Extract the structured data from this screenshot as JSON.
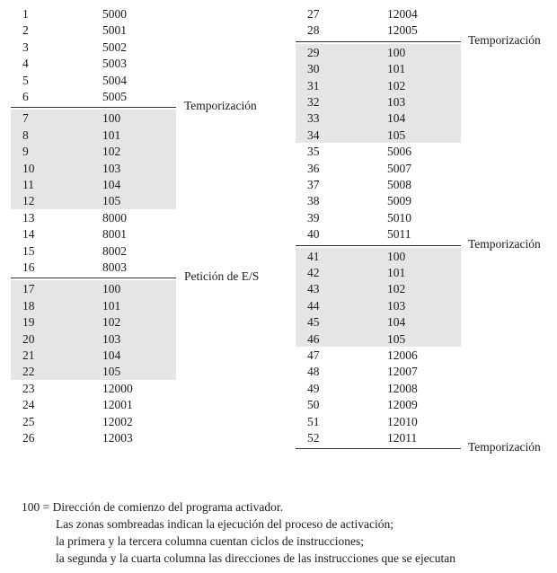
{
  "left_column": {
    "rows": [
      [
        "1",
        "5000"
      ],
      [
        "2",
        "5001"
      ],
      [
        "3",
        "5002"
      ],
      [
        "4",
        "5003"
      ],
      [
        "5",
        "5004"
      ],
      [
        "6",
        "5005"
      ],
      [
        "7",
        "100"
      ],
      [
        "8",
        "101"
      ],
      [
        "9",
        "102"
      ],
      [
        "10",
        "103"
      ],
      [
        "11",
        "104"
      ],
      [
        "12",
        "105"
      ],
      [
        "13",
        "8000"
      ],
      [
        "14",
        "8001"
      ],
      [
        "15",
        "8002"
      ],
      [
        "16",
        "8003"
      ],
      [
        "17",
        "100"
      ],
      [
        "18",
        "101"
      ],
      [
        "19",
        "102"
      ],
      [
        "20",
        "103"
      ],
      [
        "21",
        "104"
      ],
      [
        "22",
        "105"
      ],
      [
        "23",
        "12000"
      ],
      [
        "24",
        "12001"
      ],
      [
        "25",
        "12002"
      ],
      [
        "26",
        "12003"
      ]
    ],
    "shaded_row_blocks": [
      [
        6,
        11
      ],
      [
        16,
        21
      ]
    ],
    "markers": [
      {
        "after_row": 5,
        "label": "Temporización"
      },
      {
        "after_row": 15,
        "label": "Petición de E/S"
      }
    ]
  },
  "right_column": {
    "rows": [
      [
        "27",
        "12004"
      ],
      [
        "28",
        "12005"
      ],
      [
        "29",
        "100"
      ],
      [
        "30",
        "101"
      ],
      [
        "31",
        "102"
      ],
      [
        "32",
        "103"
      ],
      [
        "33",
        "104"
      ],
      [
        "34",
        "105"
      ],
      [
        "35",
        "5006"
      ],
      [
        "36",
        "5007"
      ],
      [
        "37",
        "5008"
      ],
      [
        "38",
        "5009"
      ],
      [
        "39",
        "5010"
      ],
      [
        "40",
        "5011"
      ],
      [
        "41",
        "100"
      ],
      [
        "42",
        "101"
      ],
      [
        "43",
        "102"
      ],
      [
        "44",
        "103"
      ],
      [
        "45",
        "104"
      ],
      [
        "46",
        "105"
      ],
      [
        "47",
        "12006"
      ],
      [
        "48",
        "12007"
      ],
      [
        "49",
        "12008"
      ],
      [
        "50",
        "12009"
      ],
      [
        "51",
        "12010"
      ],
      [
        "52",
        "12011"
      ]
    ],
    "shaded_row_blocks": [
      [
        2,
        7
      ],
      [
        14,
        19
      ]
    ],
    "markers": [
      {
        "after_row": 1,
        "label": "Temporización"
      },
      {
        "after_row": 13,
        "label": "Temporización"
      },
      {
        "after_row": 25,
        "label": "Temporización"
      }
    ]
  },
  "footnote": {
    "definition": "100 = Dirección de comienzo del programa activador.",
    "lines": [
      "Las zonas sombreadas indican la ejecución del proceso de activación;",
      "la primera y la tercera columna cuentan ciclos de instrucciones;",
      "la segunda y la cuarta columna las direcciones de las instrucciones que se ejecutan"
    ]
  }
}
